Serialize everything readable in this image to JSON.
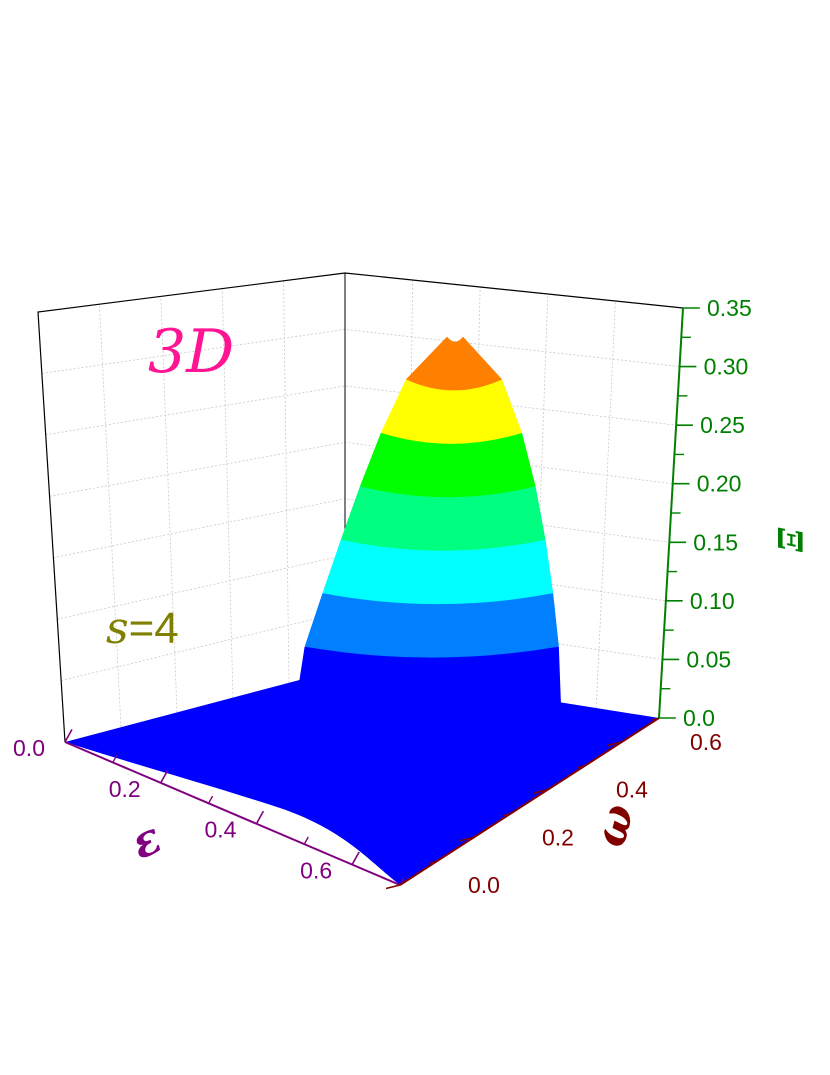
{
  "chart_data": {
    "type": "surface3d",
    "annotations": {
      "dim": "3D",
      "param_symbol": "s",
      "param_eq": "=4"
    },
    "x_axis": {
      "label": "ε",
      "range": [
        0.0,
        0.7
      ],
      "ticks": [
        "0.0",
        "0.2",
        "0.4",
        "0.6"
      ]
    },
    "y_axis": {
      "label": "ω",
      "range": [
        0.0,
        0.7
      ],
      "ticks": [
        "0.0",
        "0.2",
        "0.4",
        "0.6"
      ]
    },
    "z_axis": {
      "label": "Ξ",
      "range": [
        0.0,
        0.35
      ],
      "ticks": [
        "0.0",
        "0.05",
        "0.10",
        "0.15",
        "0.20",
        "0.25",
        "0.30",
        "0.35"
      ]
    },
    "grid": true,
    "colorbands": [
      "#0000ff",
      "#0080ff",
      "#00ffff",
      "#00ff80",
      "#00ff00",
      "#ffff00",
      "#ff8000",
      "#ff0000"
    ],
    "band_levels": [
      0.0,
      0.05,
      0.1,
      0.15,
      0.2,
      0.25,
      0.3,
      0.35
    ],
    "peak": {
      "x": 0.35,
      "y": 0.0,
      "z": 0.34
    },
    "colors": {
      "x_axis": "#800080",
      "y_axis": "#800000",
      "z_axis": "#008000",
      "dim_label": "#ff1493",
      "param_label": "#808000"
    }
  }
}
